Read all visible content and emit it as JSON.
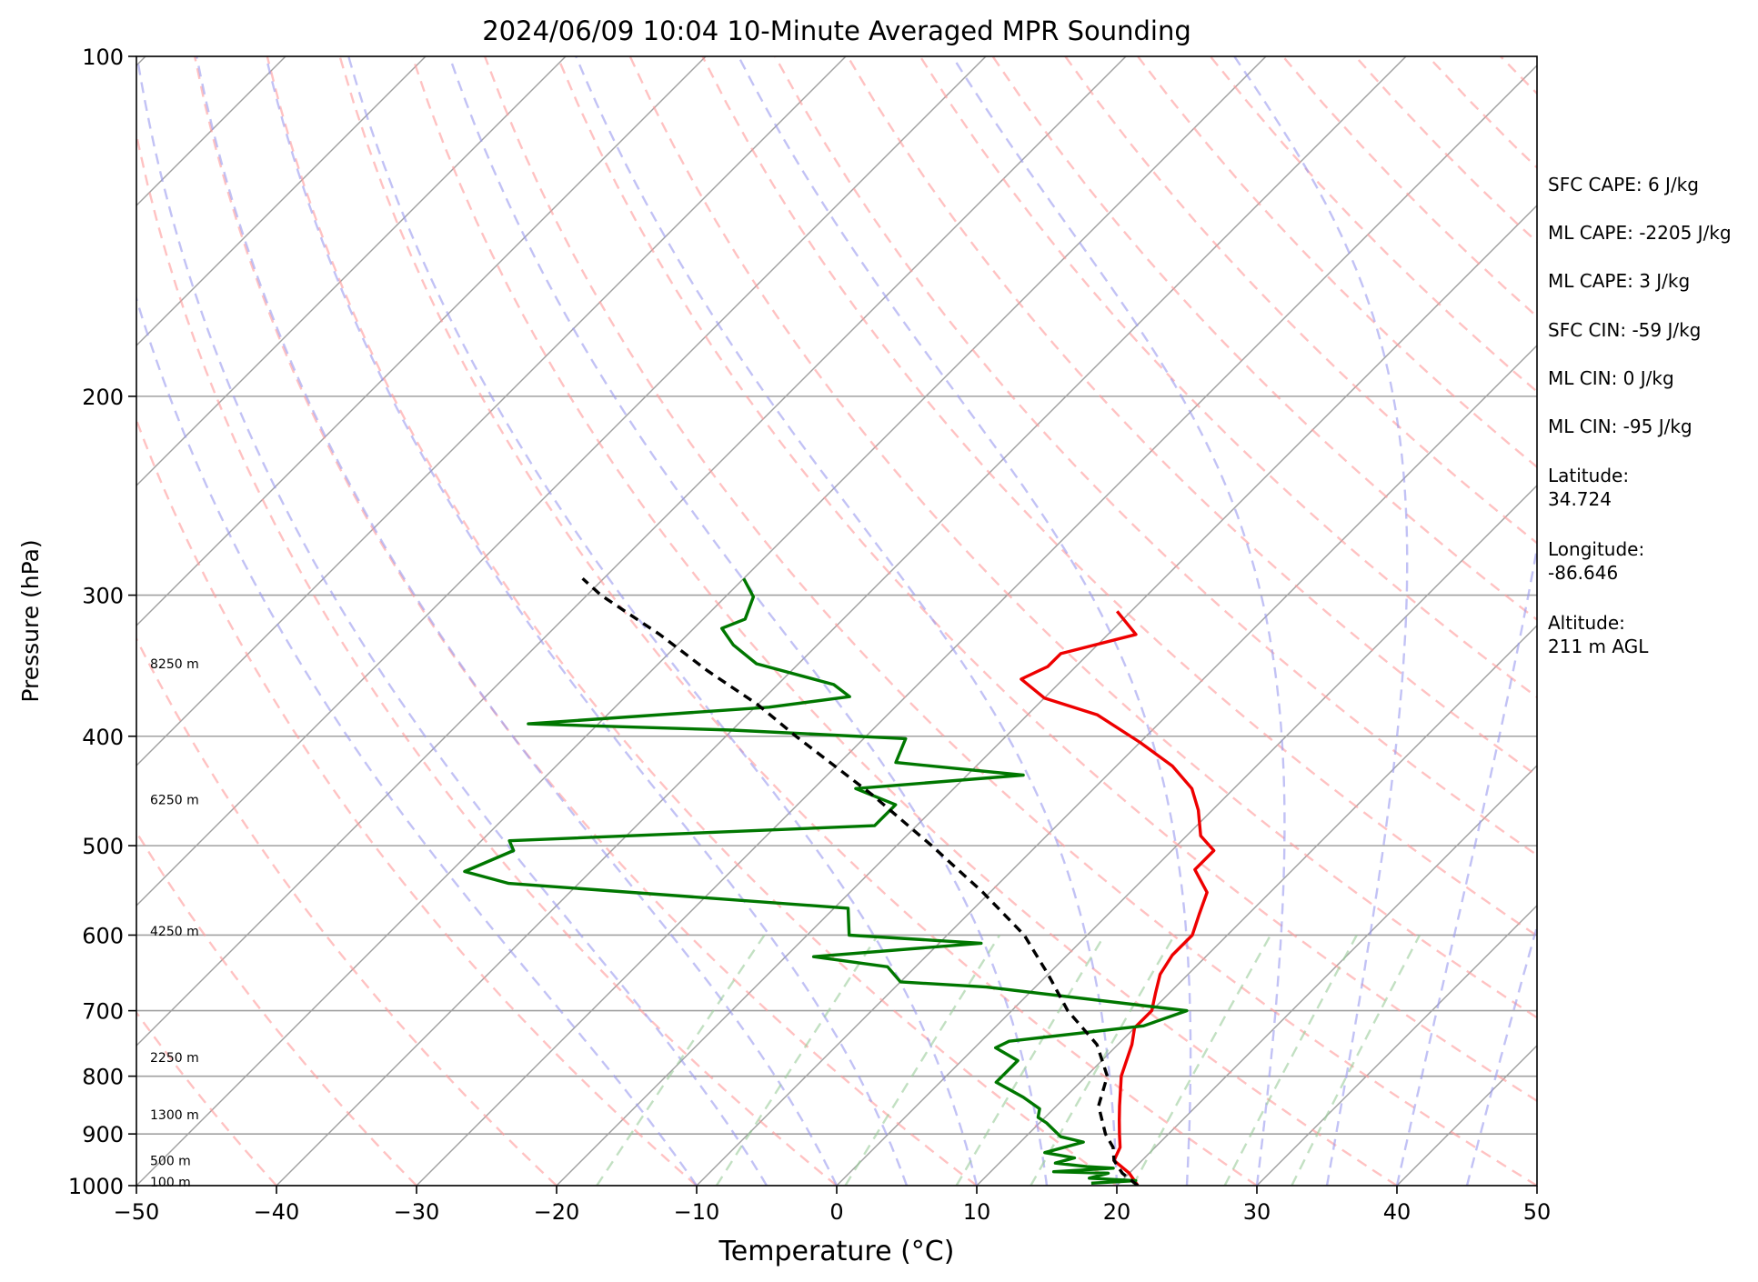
{
  "chart_data": {
    "type": "line",
    "title": "2024/06/09 10:04 10-Minute Averaged MPR Sounding",
    "xlabel": "Temperature (°C)",
    "ylabel": "Pressure (hPa)",
    "xlim": [
      -50,
      50
    ],
    "ylim": [
      1000,
      100
    ],
    "yscale": "log",
    "skew": true,
    "grid": true,
    "x_ticks": [
      "−50",
      "−40",
      "−30",
      "−20",
      "−10",
      "0",
      "10",
      "20",
      "30",
      "40",
      "50"
    ],
    "y_ticks": [
      "100",
      "200",
      "300",
      "400",
      "500",
      "600",
      "700",
      "800",
      "900",
      "1000"
    ],
    "colors": {
      "temperature": "#ee0000",
      "dewpoint": "#007700",
      "parcel": "#000000",
      "isotherm": "#a0a0a0",
      "dry_adiabat": "#ff9999",
      "moist_adiabat": "#9999ee",
      "mixing_ratio": "#99cc99"
    },
    "series": [
      {
        "key": "temperature",
        "points": [
          [
            21.5,
            1000
          ],
          [
            20,
            975
          ],
          [
            18,
            950
          ],
          [
            17.5,
            925
          ],
          [
            16.5,
            900
          ],
          [
            15.5,
            875
          ],
          [
            14.5,
            850
          ],
          [
            12.5,
            800
          ],
          [
            11,
            750
          ],
          [
            10,
            725
          ],
          [
            10,
            700
          ],
          [
            9,
            675
          ],
          [
            8,
            650
          ],
          [
            7.5,
            625
          ],
          [
            7.5,
            600
          ],
          [
            6.5,
            575
          ],
          [
            5.5,
            550
          ],
          [
            3,
            525
          ],
          [
            3,
            505
          ],
          [
            1,
            490
          ],
          [
            -1,
            465
          ],
          [
            -3,
            445
          ],
          [
            -6,
            425
          ],
          [
            -10,
            405
          ],
          [
            -15,
            383
          ],
          [
            -20,
            370
          ],
          [
            -23,
            356
          ],
          [
            -22,
            347
          ],
          [
            -22,
            338
          ],
          [
            -18,
            325
          ],
          [
            -21,
            310
          ]
        ]
      },
      {
        "key": "dewpoint",
        "points": [
          [
            18,
            995
          ],
          [
            21,
            990
          ],
          [
            17.5,
            985
          ],
          [
            18.5,
            975
          ],
          [
            14.5,
            972
          ],
          [
            18.5,
            965
          ],
          [
            16.5,
            962
          ],
          [
            14,
            955
          ],
          [
            15,
            945
          ],
          [
            12.5,
            935
          ],
          [
            14.5,
            915
          ],
          [
            12.5,
            905
          ],
          [
            10.5,
            880
          ],
          [
            9.5,
            870
          ],
          [
            9,
            855
          ],
          [
            7,
            835
          ],
          [
            4,
            810
          ],
          [
            4,
            775
          ],
          [
            1.5,
            755
          ],
          [
            2,
            745
          ],
          [
            10.5,
            722
          ],
          [
            12.5,
            700
          ],
          [
            -3.5,
            667
          ],
          [
            -10,
            660
          ],
          [
            -12,
            640
          ],
          [
            -18,
            627
          ],
          [
            -7,
            610
          ],
          [
            -17,
            600
          ],
          [
            -19,
            568
          ],
          [
            -45,
            540
          ],
          [
            -49,
            527
          ],
          [
            -47,
            505
          ],
          [
            -48,
            495
          ],
          [
            -23,
            480
          ],
          [
            -23,
            460
          ],
          [
            -27,
            445
          ],
          [
            -16,
            433
          ],
          [
            -26,
            422
          ],
          [
            -27,
            402
          ],
          [
            -40,
            395
          ],
          [
            -55,
            390
          ],
          [
            -39,
            377
          ],
          [
            -34,
            369
          ],
          [
            -36,
            360
          ],
          [
            -43,
            345
          ],
          [
            -46,
            332
          ],
          [
            -48,
            321
          ],
          [
            -47,
            315
          ],
          [
            -48,
            301
          ],
          [
            -50,
            290
          ]
        ]
      },
      {
        "key": "parcel",
        "points": [
          [
            21.5,
            1000
          ],
          [
            19.5,
            975
          ],
          [
            18,
            950
          ],
          [
            17,
            925
          ],
          [
            15.5,
            900
          ],
          [
            13,
            850
          ],
          [
            11.5,
            800
          ],
          [
            8.5,
            750
          ],
          [
            4,
            700
          ],
          [
            0,
            650
          ],
          [
            -4.5,
            600
          ],
          [
            -10.5,
            550
          ],
          [
            -17.5,
            500
          ],
          [
            -25.5,
            450
          ],
          [
            -35,
            400
          ],
          [
            -40,
            375
          ],
          [
            -46,
            350
          ],
          [
            -52,
            325
          ],
          [
            -59,
            300
          ],
          [
            -61.5,
            290
          ]
        ]
      }
    ],
    "height_labels": [
      {
        "label": "8250 m",
        "pressure": 345
      },
      {
        "label": "6250 m",
        "pressure": 455
      },
      {
        "label": "4250 m",
        "pressure": 595
      },
      {
        "label": "2250 m",
        "pressure": 770
      },
      {
        "label": "1300 m",
        "pressure": 865
      },
      {
        "label": "500 m",
        "pressure": 950
      },
      {
        "label": "100 m",
        "pressure": 993
      }
    ],
    "annotations": [
      "SFC CAPE: 6 J/kg",
      "ML CAPE: -2205 J/kg",
      "ML CAPE: 3 J/kg",
      "SFC CIN: -59 J/kg",
      "ML CIN: 0 J/kg",
      "ML CIN: -95 J/kg",
      "Latitude:",
      "34.724",
      "Longitude:",
      "-86.646",
      "Altitude:",
      "211 m AGL"
    ]
  }
}
